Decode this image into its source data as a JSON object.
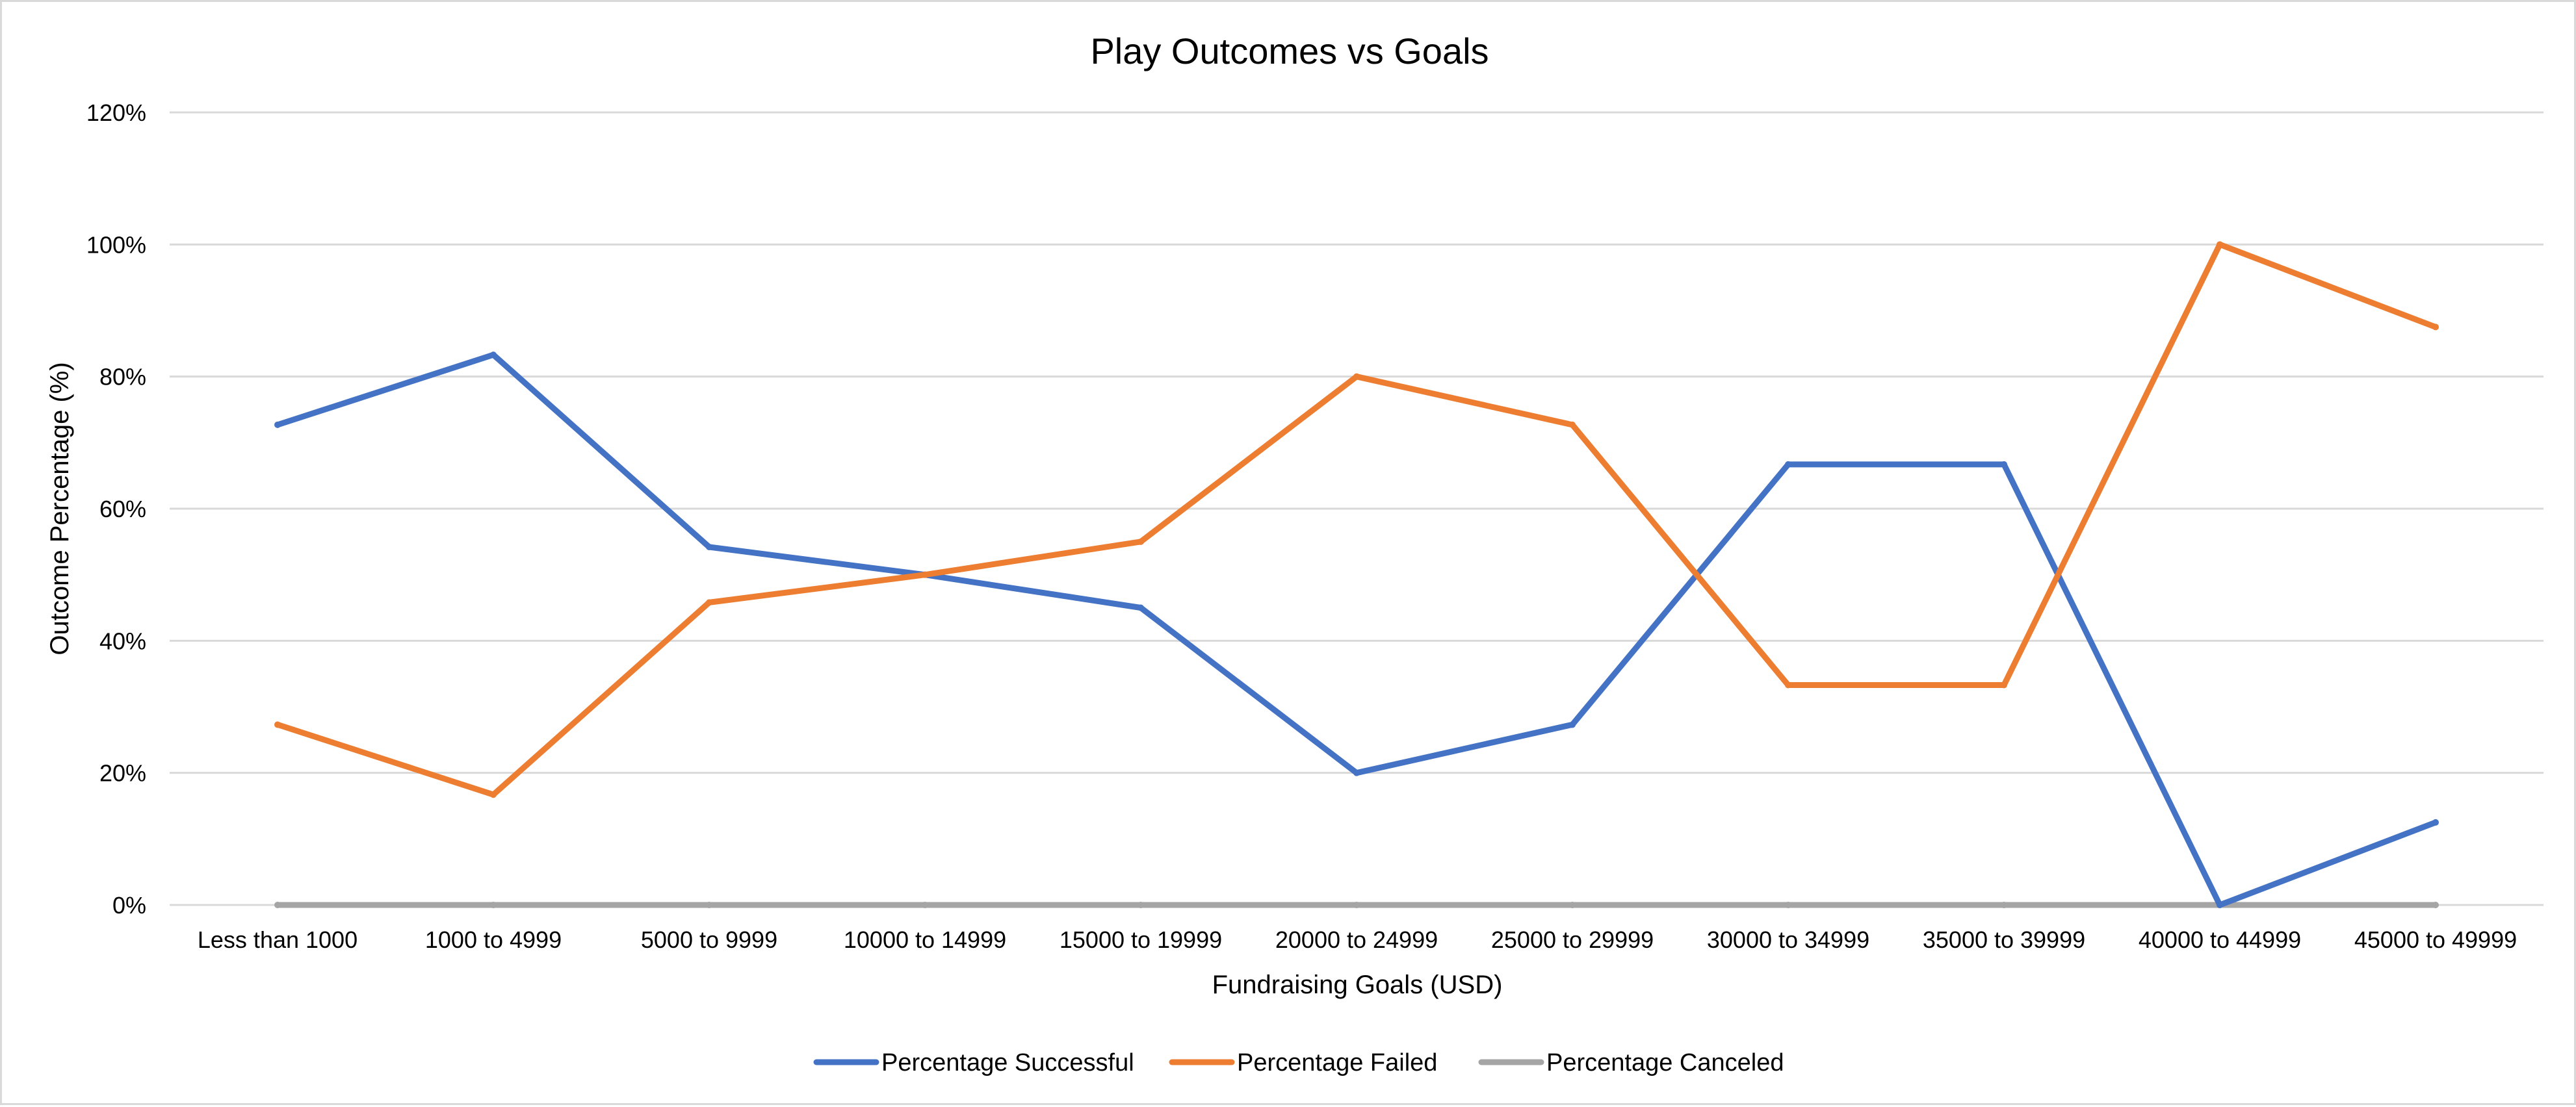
{
  "chart_data": {
    "type": "line",
    "title": "Play Outcomes vs Goals",
    "xlabel": "Fundraising Goals (USD)",
    "ylabel": "Outcome Percentage (%)",
    "ylim": [
      0,
      1.2
    ],
    "y_ticks": [
      0,
      0.2,
      0.4,
      0.6,
      0.8,
      1.0,
      1.2
    ],
    "y_tick_labels": [
      "0%",
      "20%",
      "40%",
      "60%",
      "80%",
      "100%",
      "120%"
    ],
    "grid": "horizontal",
    "legend_position": "bottom",
    "categories": [
      "Less than 1000",
      "1000 to 4999",
      "5000 to 9999",
      "10000 to 14999",
      "15000 to 19999",
      "20000 to 24999",
      "25000 to 29999",
      "30000 to 34999",
      "35000 to 39999",
      "40000 to 44999",
      "45000 to 49999"
    ],
    "series": [
      {
        "name": "Percentage Successful",
        "color": "#4472c4",
        "values": [
          0.727,
          0.833,
          0.542,
          0.5,
          0.45,
          0.2,
          0.273,
          0.667,
          0.667,
          0.0,
          0.125
        ]
      },
      {
        "name": "Percentage Failed",
        "color": "#ed7d31",
        "values": [
          0.273,
          0.167,
          0.458,
          0.5,
          0.55,
          0.8,
          0.727,
          0.333,
          0.333,
          1.0,
          0.875
        ]
      },
      {
        "name": "Percentage Canceled",
        "color": "#a5a5a5",
        "values": [
          0,
          0,
          0,
          0,
          0,
          0,
          0,
          0,
          0,
          0,
          0
        ]
      }
    ]
  }
}
